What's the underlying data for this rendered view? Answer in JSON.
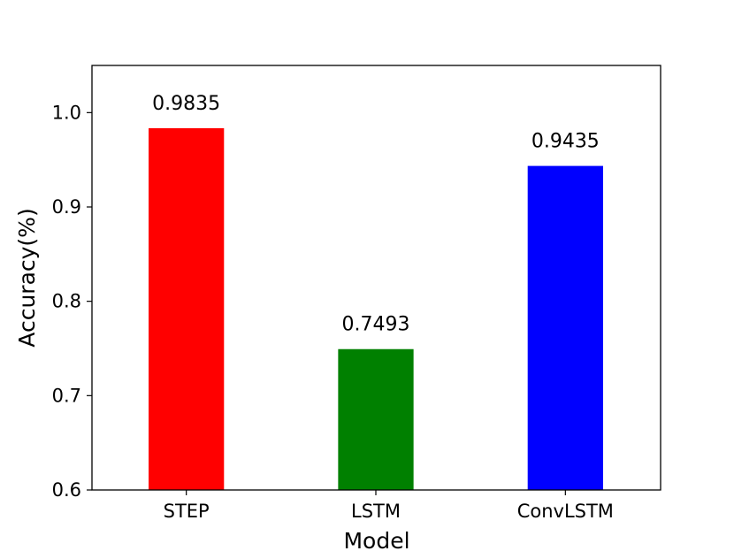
{
  "chart_data": {
    "type": "bar",
    "categories": [
      "STEP",
      "LSTM",
      "ConvLSTM"
    ],
    "values": [
      0.9835,
      0.7493,
      0.9435
    ],
    "data_labels": [
      "0.9835",
      "0.7493",
      "0.9435"
    ],
    "colors": [
      "#ff0000",
      "#008000",
      "#0000ff"
    ],
    "xlabel": "Model",
    "ylabel": "Accuracy(%)",
    "ylim": [
      0.6,
      1.05
    ],
    "yticks": [
      0.6,
      0.7,
      0.8,
      0.9,
      1.0
    ],
    "ytick_labels": [
      "0.6",
      "0.7",
      "0.8",
      "0.9",
      "1.0"
    ],
    "grid": false,
    "legend": "none"
  }
}
